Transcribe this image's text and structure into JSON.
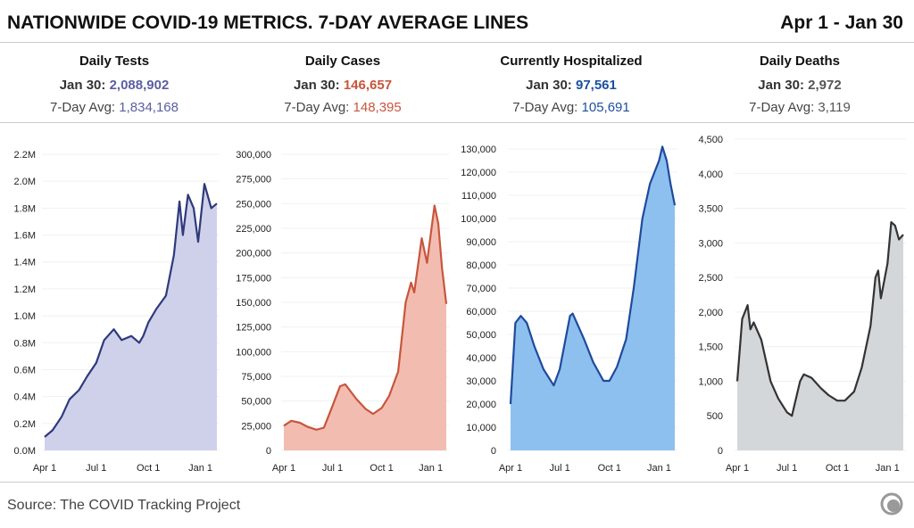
{
  "header": {
    "title": "NATIONWIDE COVID-19 METRICS. 7-DAY AVERAGE LINES",
    "range": "Apr 1 - Jan 30"
  },
  "stats": [
    {
      "name": "Daily Tests",
      "latest_label": "Jan 30:",
      "latest": "2,088,902",
      "avg_label": "7-Day Avg:",
      "avg": "1,834,168",
      "color": "#5a5fa0"
    },
    {
      "name": "Daily Cases",
      "latest_label": "Jan 30:",
      "latest": "146,657",
      "avg_label": "7-Day Avg:",
      "avg": "148,395",
      "color": "#c8553d"
    },
    {
      "name": "Currently Hospitalized",
      "latest_label": "Jan 30:",
      "latest": "97,561",
      "avg_label": "7-Day Avg:",
      "avg": "105,691",
      "color": "#1e4f9e"
    },
    {
      "name": "Daily Deaths",
      "latest_label": "Jan 30:",
      "latest": "2,972",
      "avg_label": "7-Day Avg:",
      "avg": "3,119",
      "color": "#555555"
    }
  ],
  "source": "Source: The COVID Tracking Project",
  "chart_data": [
    {
      "type": "area",
      "title": "Daily Tests",
      "line_color": "#2e3a7c",
      "fill_color": "#cfd1ea",
      "ylim": [
        0,
        2200000
      ],
      "yticks": [
        0,
        200000,
        400000,
        600000,
        800000,
        1000000,
        1200000,
        1400000,
        1600000,
        1800000,
        2000000,
        2200000
      ],
      "ytick_labels": [
        "0.0M",
        "0.2M",
        "0.4M",
        "0.6M",
        "0.8M",
        "1.0M",
        "1.2M",
        "1.4M",
        "1.6M",
        "1.8M",
        "2.0M",
        "2.2M"
      ],
      "xticks": [
        "2020-04-01",
        "2020-07-01",
        "2020-10-01",
        "2021-01-01"
      ],
      "xtick_labels": [
        "Apr 1",
        "Jul 1",
        "Oct 1",
        "Jan 1"
      ],
      "xlim": [
        "2020-04-01",
        "2021-01-30"
      ],
      "x": [
        "2020-04-01",
        "2020-04-15",
        "2020-05-01",
        "2020-05-15",
        "2020-06-01",
        "2020-06-15",
        "2020-07-01",
        "2020-07-15",
        "2020-08-01",
        "2020-08-15",
        "2020-09-01",
        "2020-09-15",
        "2020-09-22",
        "2020-10-01",
        "2020-10-15",
        "2020-11-01",
        "2020-11-15",
        "2020-11-25",
        "2020-12-01",
        "2020-12-10",
        "2020-12-20",
        "2020-12-28",
        "2021-01-08",
        "2021-01-20",
        "2021-01-30"
      ],
      "y": [
        100000,
        150000,
        250000,
        380000,
        450000,
        550000,
        650000,
        820000,
        900000,
        820000,
        850000,
        800000,
        850000,
        950000,
        1050000,
        1150000,
        1450000,
        1850000,
        1600000,
        1900000,
        1800000,
        1550000,
        1980000,
        1800000,
        1834168
      ]
    },
    {
      "type": "area",
      "title": "Daily Cases",
      "line_color": "#c8553d",
      "fill_color": "#f2bdb0",
      "ylim": [
        0,
        300000
      ],
      "yticks": [
        0,
        25000,
        50000,
        75000,
        100000,
        125000,
        150000,
        175000,
        200000,
        225000,
        250000,
        275000,
        300000
      ],
      "ytick_labels": [
        "0",
        "25,000",
        "50,000",
        "75,000",
        "100,000",
        "125,000",
        "150,000",
        "175,000",
        "200,000",
        "225,000",
        "250,000",
        "275,000",
        "300,000"
      ],
      "xticks": [
        "2020-04-01",
        "2020-07-01",
        "2020-10-01",
        "2021-01-01"
      ],
      "xtick_labels": [
        "Apr 1",
        "Jul 1",
        "Oct 1",
        "Jan 1"
      ],
      "xlim": [
        "2020-04-01",
        "2021-01-30"
      ],
      "x": [
        "2020-04-01",
        "2020-04-15",
        "2020-05-01",
        "2020-05-15",
        "2020-06-01",
        "2020-06-15",
        "2020-07-01",
        "2020-07-15",
        "2020-07-25",
        "2020-08-15",
        "2020-09-01",
        "2020-09-15",
        "2020-10-01",
        "2020-10-15",
        "2020-11-01",
        "2020-11-15",
        "2020-11-25",
        "2020-12-01",
        "2020-12-15",
        "2020-12-25",
        "2021-01-08",
        "2021-01-15",
        "2021-01-22",
        "2021-01-30"
      ],
      "y": [
        25000,
        30000,
        28000,
        24000,
        21000,
        23000,
        45000,
        65000,
        67000,
        52000,
        42000,
        37000,
        43000,
        55000,
        80000,
        150000,
        170000,
        160000,
        215000,
        190000,
        248000,
        230000,
        185000,
        148395
      ]
    },
    {
      "type": "area",
      "title": "Currently Hospitalized",
      "line_color": "#1f4a9c",
      "fill_color": "#8ec0ef",
      "ylim": [
        0,
        130000
      ],
      "yticks": [
        0,
        10000,
        20000,
        30000,
        40000,
        50000,
        60000,
        70000,
        80000,
        90000,
        100000,
        110000,
        120000,
        130000
      ],
      "ytick_labels": [
        "0",
        "10,000",
        "20,000",
        "30,000",
        "40,000",
        "50,000",
        "60,000",
        "70,000",
        "80,000",
        "90,000",
        "100,000",
        "110,000",
        "120,000",
        "130,000"
      ],
      "xticks": [
        "2020-04-01",
        "2020-07-01",
        "2020-10-01",
        "2021-01-01"
      ],
      "xtick_labels": [
        "Apr 1",
        "Jul 1",
        "Oct 1",
        "Jan 1"
      ],
      "xlim": [
        "2020-04-01",
        "2021-01-30"
      ],
      "x": [
        "2020-04-01",
        "2020-04-10",
        "2020-04-20",
        "2020-05-01",
        "2020-05-15",
        "2020-06-01",
        "2020-06-20",
        "2020-07-01",
        "2020-07-20",
        "2020-07-25",
        "2020-08-15",
        "2020-09-01",
        "2020-09-20",
        "2020-10-01",
        "2020-10-15",
        "2020-11-01",
        "2020-11-15",
        "2020-12-01",
        "2020-12-15",
        "2021-01-01",
        "2021-01-07",
        "2021-01-15",
        "2021-01-22",
        "2021-01-30"
      ],
      "y": [
        20000,
        55000,
        58000,
        55000,
        45000,
        35000,
        28000,
        35000,
        58000,
        59000,
        48000,
        38000,
        30000,
        30000,
        36000,
        48000,
        70000,
        100000,
        115000,
        125000,
        131000,
        125000,
        115000,
        105691
      ]
    },
    {
      "type": "area",
      "title": "Daily Deaths",
      "line_color": "#333333",
      "fill_color": "#d3d7d9",
      "ylim": [
        0,
        4500
      ],
      "yticks": [
        0,
        500,
        1000,
        1500,
        2000,
        2500,
        3000,
        3500,
        4000,
        4500
      ],
      "ytick_labels": [
        "0",
        "500",
        "1,000",
        "1,500",
        "2,000",
        "2,500",
        "3,000",
        "3,500",
        "4,000",
        "4,500"
      ],
      "xticks": [
        "2020-04-01",
        "2020-07-01",
        "2020-10-01",
        "2021-01-01"
      ],
      "xtick_labels": [
        "Apr 1",
        "Jul 1",
        "Oct 1",
        "Jan 1"
      ],
      "xlim": [
        "2020-04-01",
        "2021-01-30"
      ],
      "x": [
        "2020-04-01",
        "2020-04-10",
        "2020-04-20",
        "2020-04-25",
        "2020-05-01",
        "2020-05-15",
        "2020-06-01",
        "2020-06-15",
        "2020-07-01",
        "2020-07-10",
        "2020-07-25",
        "2020-08-01",
        "2020-08-15",
        "2020-09-01",
        "2020-09-15",
        "2020-10-01",
        "2020-10-15",
        "2020-11-01",
        "2020-11-15",
        "2020-12-01",
        "2020-12-10",
        "2020-12-15",
        "2020-12-20",
        "2021-01-01",
        "2021-01-08",
        "2021-01-15",
        "2021-01-22",
        "2021-01-30"
      ],
      "y": [
        1000,
        1900,
        2100,
        1750,
        1850,
        1600,
        1000,
        750,
        550,
        500,
        1000,
        1100,
        1050,
        900,
        800,
        720,
        720,
        850,
        1200,
        1800,
        2500,
        2600,
        2200,
        2700,
        3300,
        3250,
        3050,
        3119
      ]
    }
  ]
}
